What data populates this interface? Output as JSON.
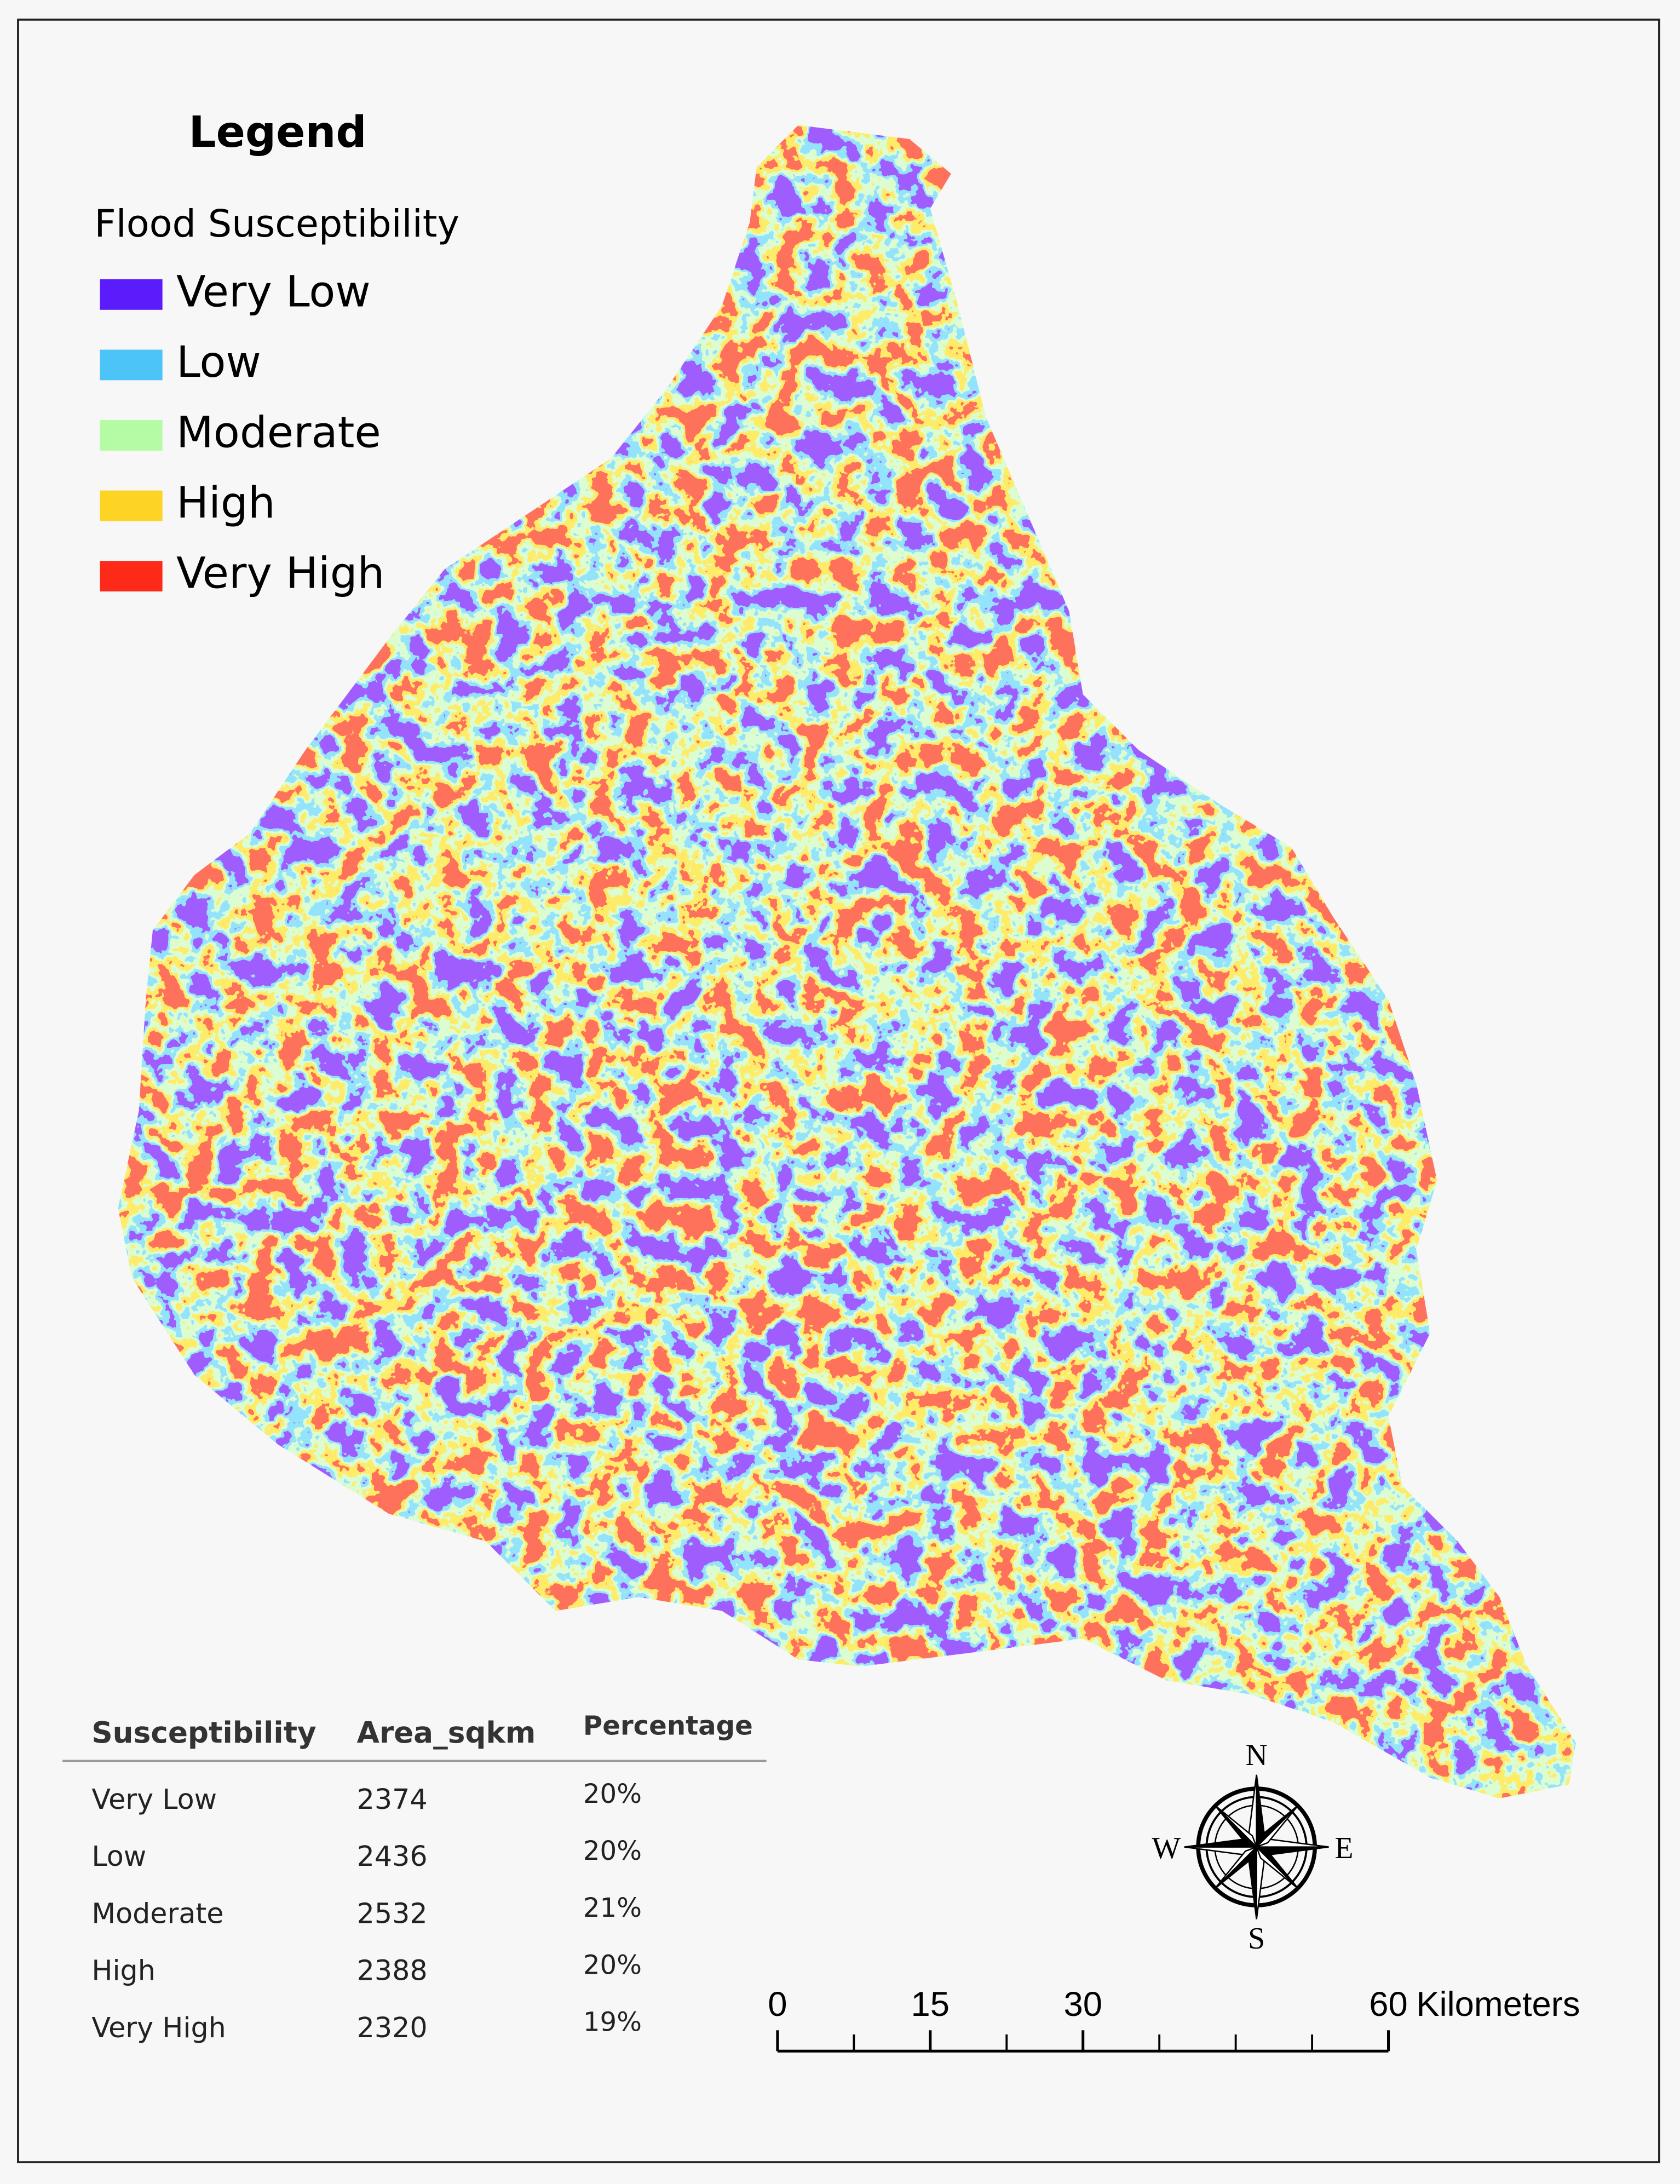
{
  "legend": {
    "title": "Legend",
    "subtitle": "Flood Susceptibility",
    "items": [
      {
        "label": "Very Low",
        "color": "#5a1cfb"
      },
      {
        "label": "Low",
        "color": "#4cc4f8"
      },
      {
        "label": "Moderate",
        "color": "#b4fba4"
      },
      {
        "label": "High",
        "color": "#fdd424"
      },
      {
        "label": "Very High",
        "color": "#fd2a1a"
      }
    ]
  },
  "table": {
    "headers": [
      "Susceptibility",
      "Area_sqkm",
      "Percentage"
    ],
    "rows": [
      [
        "Very Low",
        "2374",
        "20%"
      ],
      [
        "Low",
        "2436",
        "20%"
      ],
      [
        "Moderate",
        "2532",
        "21%"
      ],
      [
        "High",
        "2388",
        "20%"
      ],
      [
        "Very High",
        "2320",
        "19%"
      ]
    ]
  },
  "compass": {
    "n": "N",
    "s": "S",
    "e": "E",
    "w": "W"
  },
  "scale": {
    "ticks": [
      0,
      15,
      30,
      60
    ],
    "unit": "Kilometers"
  }
}
